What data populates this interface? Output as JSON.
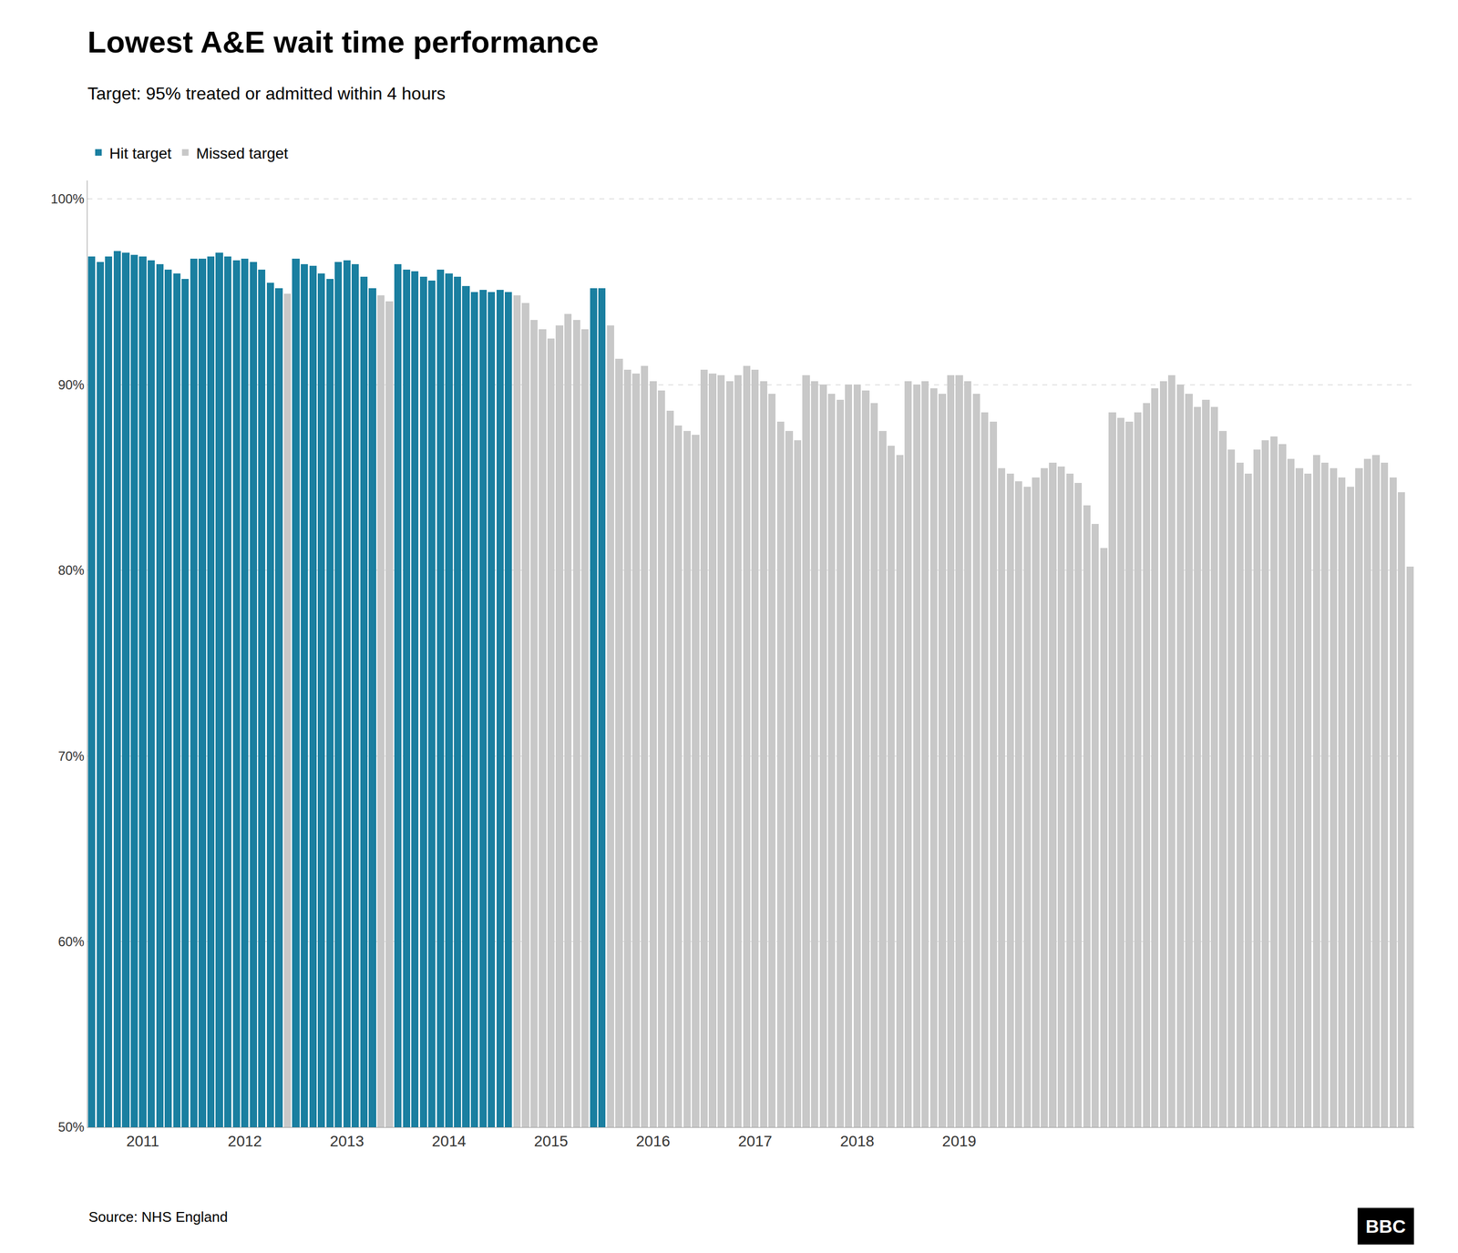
{
  "chart_data": {
    "type": "bar",
    "title": "Lowest A&E wait time performance",
    "subtitle": "Target: 95% treated or admitted within 4 hours",
    "annotations": [
      "Source: NHS England",
      "BBC"
    ],
    "categories": [
      null,
      null,
      null,
      null,
      null,
      null,
      "2011",
      null,
      null,
      null,
      null,
      null,
      null,
      null,
      null,
      null,
      null,
      null,
      "2012",
      null,
      null,
      null,
      null,
      null,
      null,
      null,
      null,
      null,
      null,
      null,
      "2013",
      null,
      null,
      null,
      null,
      null,
      null,
      null,
      null,
      null,
      null,
      null,
      "2014",
      null,
      null,
      null,
      null,
      null,
      null,
      null,
      null,
      null,
      null,
      null,
      "2015",
      null,
      null,
      null,
      null,
      null,
      null,
      null,
      null,
      null,
      null,
      null,
      "2016",
      null,
      null,
      null,
      null,
      null,
      null,
      null,
      null,
      null,
      null,
      null,
      "2017",
      null,
      null,
      null,
      null,
      null,
      null,
      null,
      null,
      null,
      null,
      null,
      "2018",
      null,
      null,
      null,
      null,
      null,
      null,
      null,
      null,
      null,
      null,
      null,
      "2019",
      null,
      null,
      null,
      null,
      null,
      null,
      null,
      null,
      null,
      null,
      null,
      null,
      null,
      null,
      null,
      null,
      null,
      null,
      null,
      null,
      null,
      null,
      null,
      null,
      null,
      null,
      null,
      null,
      null,
      null,
      null,
      null,
      null,
      null,
      null,
      null,
      null,
      null,
      null,
      null,
      null,
      null,
      null,
      null,
      null,
      null,
      null,
      null,
      null,
      null,
      null,
      null,
      null
    ],
    "series": [
      {
        "name": "Hit target",
        "color": "#1a7fa0",
        "values": [
          96.9,
          96.6,
          96.9,
          97.2,
          97.1,
          97.0,
          96.9,
          96.7,
          96.5,
          96.2,
          96.0,
          95.7,
          96.8,
          96.8,
          96.9,
          97.1,
          96.9,
          96.7,
          96.8,
          96.6,
          96.2,
          95.5,
          95.2,
          null,
          96.8,
          96.5,
          96.4,
          96.0,
          95.7,
          96.6,
          96.7,
          96.5,
          95.8,
          95.2,
          null,
          null,
          96.5,
          96.2,
          96.1,
          95.8,
          95.6,
          96.2,
          96.0,
          95.8,
          95.3,
          95.0,
          95.1,
          95.0,
          95.1,
          95.0,
          null,
          null,
          null,
          null,
          null,
          null,
          null,
          null,
          null,
          95.2,
          95.2,
          null,
          null,
          null,
          null,
          null,
          null,
          null,
          null,
          null,
          null,
          null,
          null,
          null,
          null,
          null,
          null,
          null,
          null,
          null,
          null,
          null,
          null,
          null,
          null,
          null,
          null,
          null,
          null,
          null,
          null,
          null,
          null,
          null,
          null,
          null,
          null,
          null,
          null,
          null,
          null,
          null,
          null,
          null,
          null,
          null,
          null,
          null,
          null,
          null,
          null,
          null,
          null,
          null,
          null,
          null,
          null,
          null,
          null,
          null,
          null,
          null,
          null,
          null,
          null,
          null,
          null,
          null,
          null,
          null,
          null,
          null,
          null,
          null,
          null,
          null,
          null,
          null,
          null,
          null,
          null,
          null,
          null,
          null,
          null,
          null,
          null,
          null,
          null,
          null,
          null,
          null,
          null,
          null,
          null,
          null
        ]
      },
      {
        "name": "Missed target",
        "color": "#c8c8c8",
        "values": [
          null,
          null,
          null,
          null,
          null,
          null,
          null,
          null,
          null,
          null,
          null,
          null,
          null,
          null,
          null,
          null,
          null,
          null,
          null,
          null,
          null,
          null,
          null,
          94.9,
          null,
          null,
          null,
          null,
          null,
          null,
          null,
          null,
          null,
          null,
          94.8,
          94.5,
          null,
          null,
          null,
          null,
          null,
          null,
          null,
          null,
          null,
          null,
          null,
          null,
          null,
          null,
          94.8,
          94.4,
          93.5,
          93.0,
          92.5,
          93.2,
          93.8,
          93.5,
          93.0,
          null,
          null,
          93.2,
          91.4,
          90.8,
          90.6,
          91.0,
          90.2,
          89.7,
          88.6,
          87.8,
          87.5,
          87.3,
          90.8,
          90.6,
          90.5,
          90.2,
          90.5,
          91.0,
          90.8,
          90.2,
          89.5,
          88.0,
          87.5,
          87.0,
          90.5,
          90.2,
          90.0,
          89.5,
          89.2,
          90.0,
          90.0,
          89.7,
          89.0,
          87.5,
          86.7,
          86.2,
          90.2,
          90.0,
          90.2,
          89.8,
          89.5,
          90.5,
          90.5,
          90.2,
          89.5,
          88.5,
          88.0,
          85.5,
          85.2,
          84.8,
          84.5,
          85.0,
          85.5,
          85.8,
          85.6,
          85.2,
          84.7,
          83.5,
          82.5,
          81.2,
          88.5,
          88.2,
          88.0,
          88.5,
          89.0,
          89.8,
          90.2,
          90.5,
          90.0,
          89.5,
          88.8,
          89.2,
          88.8,
          87.5,
          86.5,
          85.8,
          85.2,
          86.5,
          87.0,
          87.2,
          86.8,
          86.0,
          85.5,
          85.2,
          86.2,
          85.8,
          85.5,
          85.0,
          84.5,
          85.5,
          86.0,
          86.2,
          85.8,
          85.0,
          84.2,
          80.2
        ]
      }
    ],
    "ylim": [
      50,
      101
    ],
    "yticks": [
      {
        "value": 50,
        "label": "50%"
      },
      {
        "value": 60,
        "label": "60%"
      },
      {
        "value": 70,
        "label": "70%"
      },
      {
        "value": 80,
        "label": "80%"
      },
      {
        "value": 90,
        "label": "90%"
      },
      {
        "value": 100,
        "label": "100%"
      }
    ],
    "grid": true,
    "legend": "top left"
  }
}
